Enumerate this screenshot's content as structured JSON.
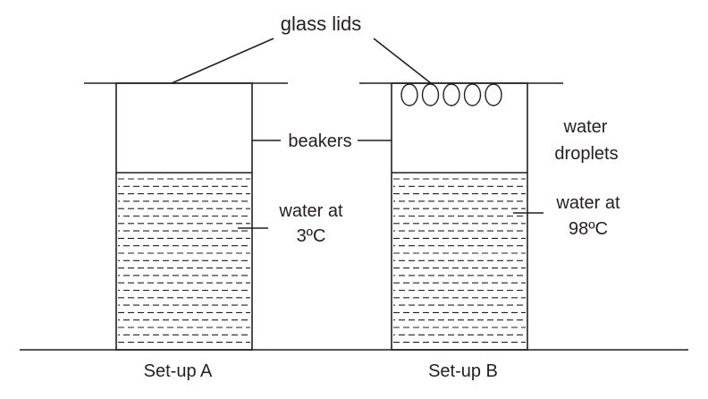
{
  "labels": {
    "glass_lids": "glass lids",
    "beakers": "beakers",
    "water_droplets_line1": "water",
    "water_droplets_line2": "droplets",
    "water_a_line1": "water at",
    "water_a_line2": "3ºC",
    "water_b_line1": "water at",
    "water_b_line2": "98ºC",
    "setup_a": "Set-up A",
    "setup_b": "Set-up B"
  },
  "setup_a": {
    "water_temperature_celsius": 3
  },
  "setup_b": {
    "water_temperature_celsius": 98,
    "droplet_count": 5
  },
  "colors": {
    "ink": "#231f20",
    "background": "#ffffff"
  }
}
